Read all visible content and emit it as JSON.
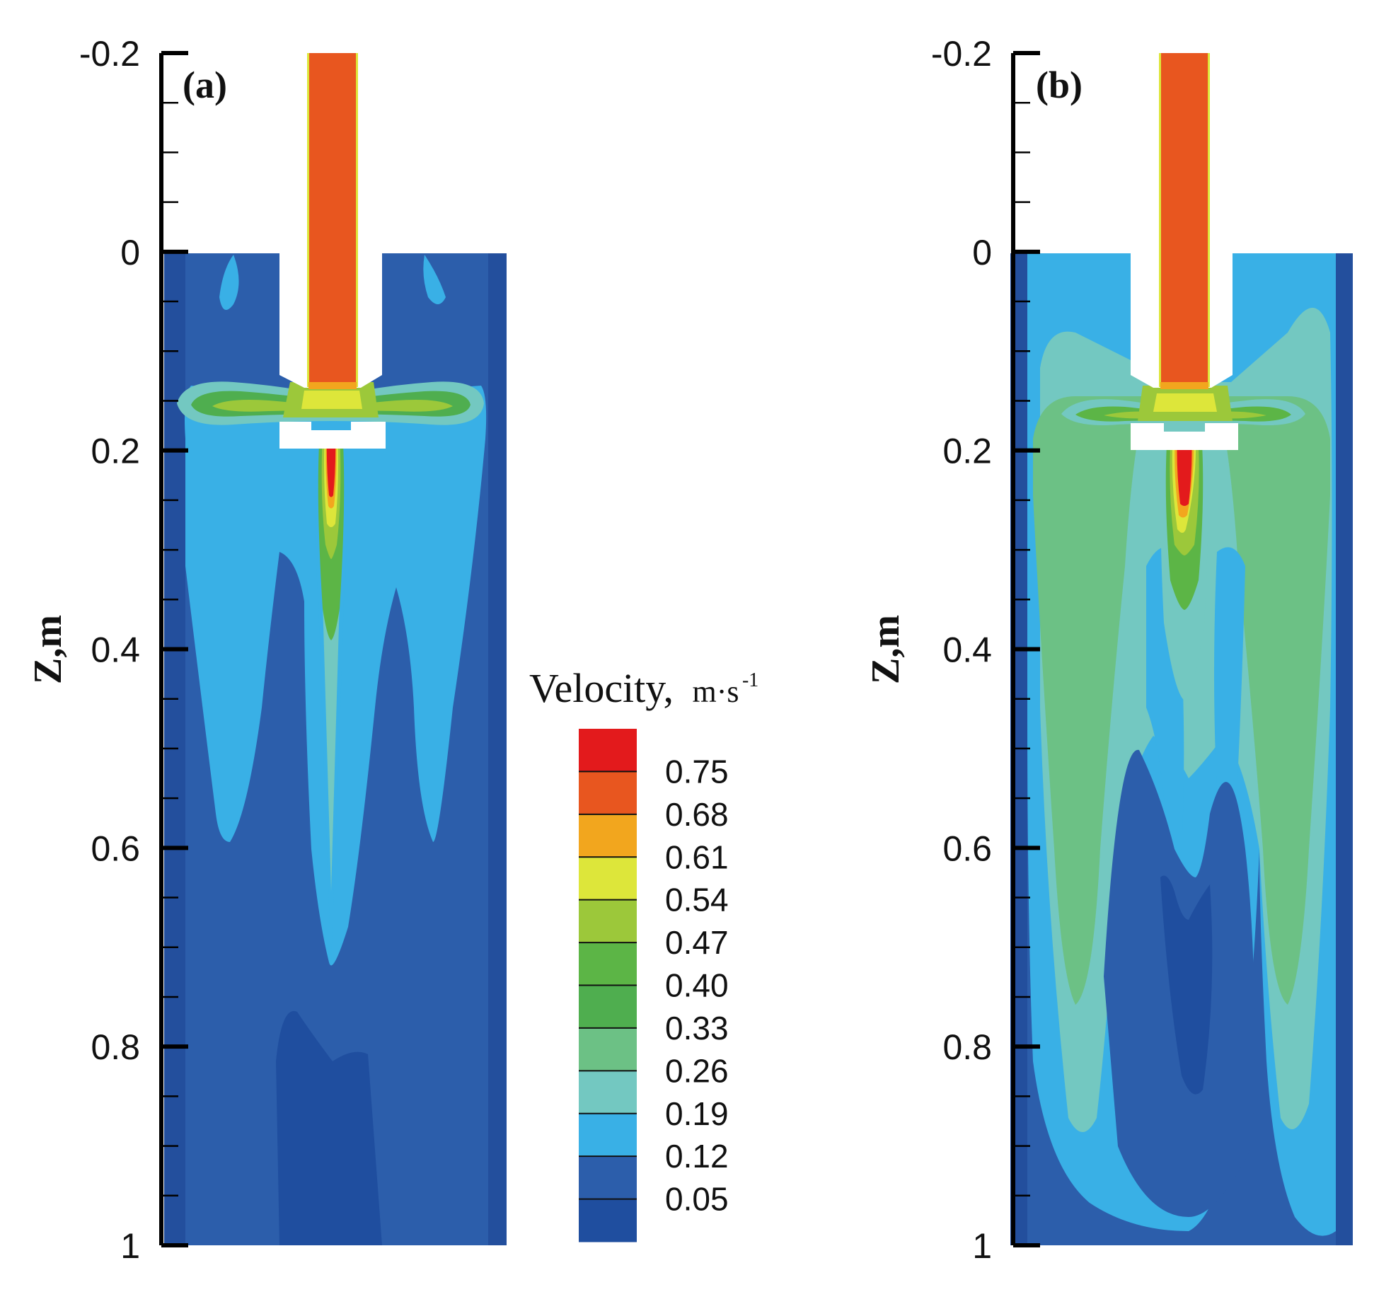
{
  "chart_data": {
    "type": "heatmap",
    "title": "",
    "colorbar": {
      "title": "Velocity,",
      "unit": "m·s",
      "unit_exponent": "-1",
      "levels": [
        "0.75",
        "0.68",
        "0.61",
        "0.54",
        "0.47",
        "0.40",
        "0.33",
        "0.26",
        "0.19",
        "0.12",
        "0.05"
      ],
      "colors": [
        "#e31a1c",
        "#e8561f",
        "#f2a61e",
        "#dde63a",
        "#9cc83a",
        "#5cb546",
        "#4fae4f",
        "#6cc185",
        "#73c8c1",
        "#39b0e6",
        "#2c5eab",
        "#1f4e9f"
      ]
    },
    "panels": [
      {
        "label": "(a)",
        "ylabel": "Z,m",
        "ylim": [
          -0.2,
          1
        ],
        "yticks": [
          "-0.2",
          "0",
          "0.2",
          "0.4",
          "0.6",
          "0.8",
          "1"
        ],
        "background_level": "0.05–0.12",
        "shaft_level": "0.68–0.75",
        "jet_core_level": "0.75+"
      },
      {
        "label": "(b)",
        "ylabel": "Z,m",
        "ylim": [
          -0.2,
          1
        ],
        "yticks": [
          "-0.2",
          "0",
          "0.2",
          "0.4",
          "0.6",
          "0.8",
          "1"
        ],
        "background_level": "0.12–0.26",
        "shaft_level": "0.68–0.75",
        "jet_core_level": "0.75+"
      }
    ]
  }
}
